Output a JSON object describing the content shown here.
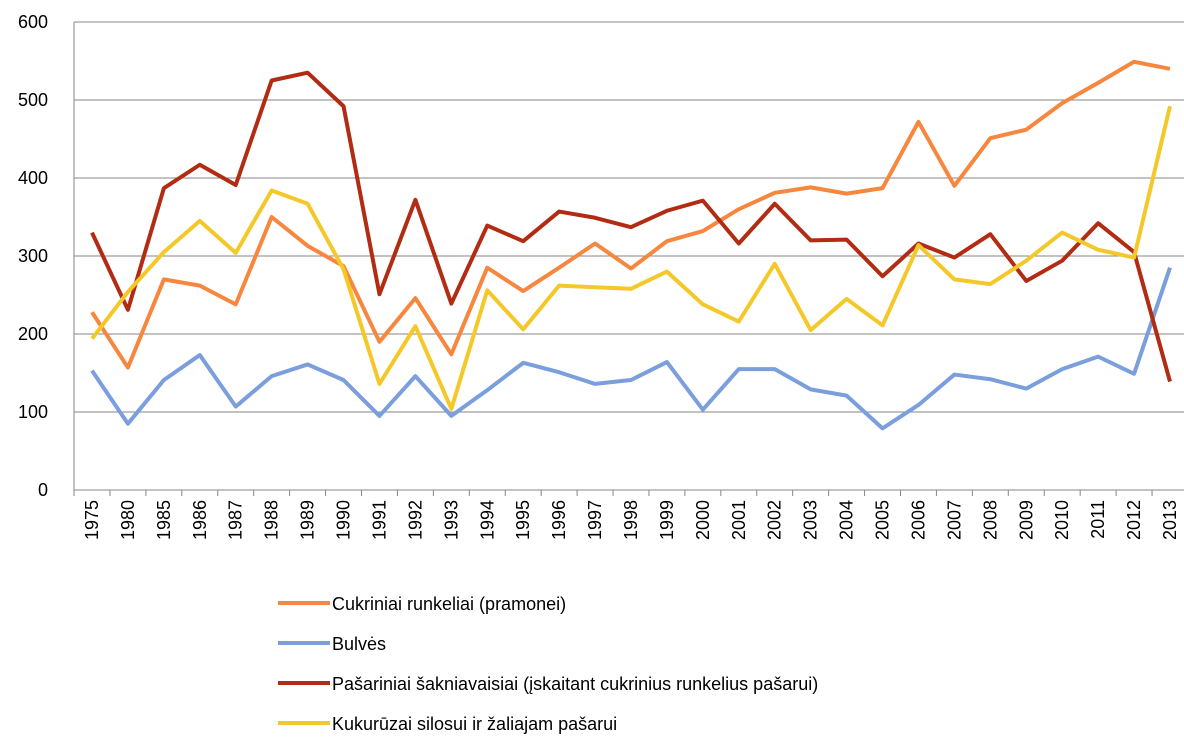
{
  "chart_data": {
    "type": "line",
    "categories": [
      "1975",
      "1980",
      "1985",
      "1986",
      "1987",
      "1988",
      "1989",
      "1990",
      "1991",
      "1992",
      "1993",
      "1994",
      "1995",
      "1996",
      "1997",
      "1998",
      "1999",
      "2000",
      "2001",
      "2002",
      "2003",
      "2004",
      "2005",
      "2006",
      "2007",
      "2008",
      "2009",
      "2010",
      "2011",
      "2012",
      "2013"
    ],
    "series": [
      {
        "name": "Cukriniai runkeliai (pramonei)",
        "color": "#f7873f",
        "values": [
          228,
          157,
          270,
          262,
          238,
          350,
          313,
          287,
          190,
          246,
          174,
          285,
          255,
          285,
          316,
          284,
          319,
          332,
          360,
          381,
          388,
          380,
          387,
          472,
          390,
          451,
          462,
          496,
          522,
          549,
          540
        ]
      },
      {
        "name": "Bulvės",
        "color": "#7b9fdc",
        "values": [
          153,
          85,
          141,
          173,
          107,
          146,
          161,
          141,
          95,
          146,
          95,
          128,
          163,
          151,
          136,
          141,
          164,
          103,
          155,
          155,
          129,
          121,
          79,
          109,
          148,
          142,
          130,
          155,
          171,
          149,
          285
        ]
      },
      {
        "name": "Pašariniai šakniavaisiai (įskaitant cukrinius runkelius pašarui)",
        "color": "#b22c14",
        "values": [
          330,
          231,
          387,
          417,
          391,
          525,
          535,
          492,
          251,
          372,
          239,
          339,
          319,
          357,
          349,
          337,
          358,
          371,
          316,
          367,
          320,
          321,
          274,
          316,
          298,
          328,
          268,
          294,
          342,
          305,
          139
        ]
      },
      {
        "name": "Kukurūzai silosui ir žaliajam pašarui",
        "color": "#f5c82a",
        "values": [
          194,
          254,
          305,
          345,
          304,
          384,
          367,
          283,
          136,
          210,
          104,
          256,
          206,
          262,
          260,
          258,
          280,
          238,
          216,
          290,
          205,
          245,
          211,
          314,
          270,
          264,
          294,
          330,
          308,
          298,
          492
        ]
      }
    ],
    "ylim": [
      0,
      600
    ],
    "yticks": [
      0,
      100,
      200,
      300,
      400,
      500,
      600
    ],
    "grid": true
  }
}
